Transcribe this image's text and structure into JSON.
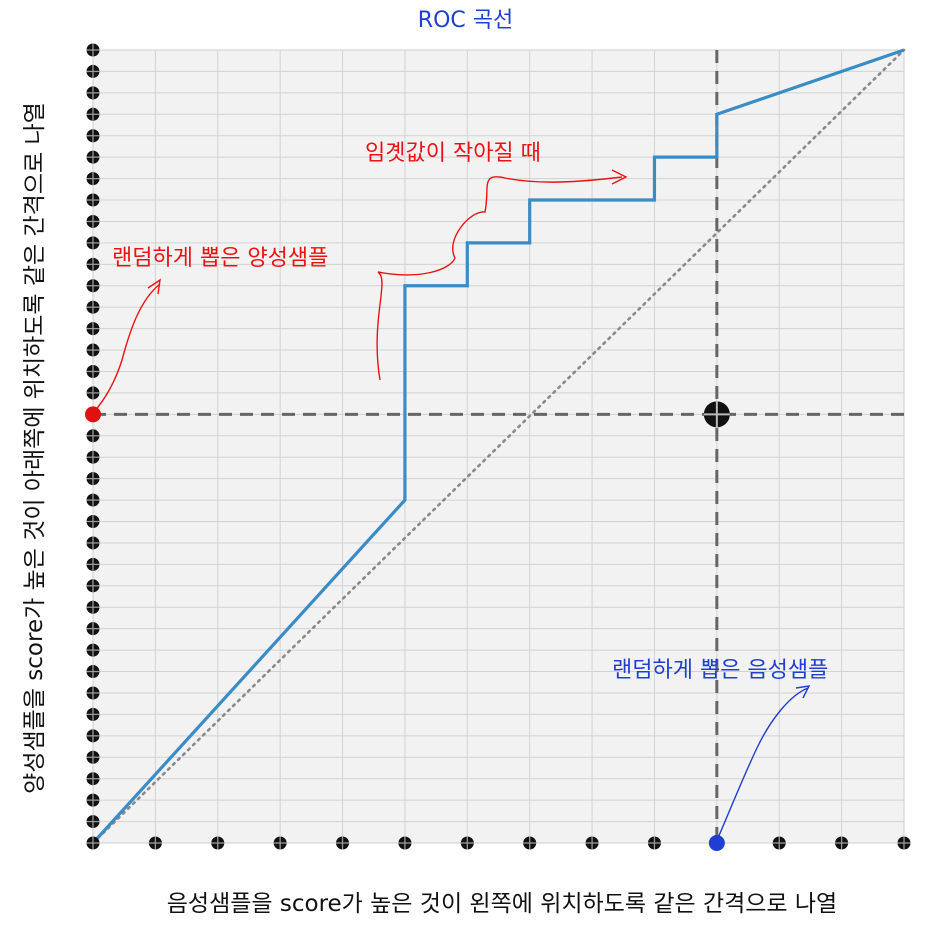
{
  "chart_data": {
    "type": "line",
    "title": "ROC 곡선",
    "xlabel": "음성샘플을 score가 높은 것이 왼쪽에 위치하도록 같은 간격으로 나열",
    "ylabel": "양성샘플을 score가 높은 것이 아래쪽에 위치하도록 같은 간격으로 나열",
    "xlim": [
      0,
      13
    ],
    "ylim": [
      0,
      37
    ],
    "grid": true,
    "x_ticks": [
      0,
      1,
      2,
      3,
      4,
      5,
      6,
      7,
      8,
      9,
      10,
      11,
      12,
      13
    ],
    "y_ticks": [
      0,
      1,
      2,
      3,
      4,
      5,
      6,
      7,
      8,
      9,
      10,
      11,
      12,
      13,
      14,
      15,
      16,
      17,
      18,
      19,
      20,
      21,
      22,
      23,
      24,
      25,
      26,
      27,
      28,
      29,
      30,
      31,
      32,
      33,
      34,
      35,
      36,
      37
    ],
    "series": [
      {
        "color": "#3a8cc4",
        "x": [
          0,
          5,
          5,
          6,
          6,
          7,
          7,
          9,
          9,
          10,
          10,
          13
        ],
        "y": [
          0,
          16,
          26,
          26,
          28,
          28,
          30,
          30,
          32,
          32,
          34,
          37
        ]
      }
    ],
    "diagonal": {
      "x": [
        0,
        13
      ],
      "y": [
        0,
        37
      ],
      "style": "dotted",
      "color": "#8a8a8a"
    },
    "crosshair": {
      "x": 10,
      "y": 20,
      "style": "dashed",
      "color": "#666666"
    },
    "highlighted_points": [
      {
        "x": 10,
        "y": 0,
        "color": "#1f3fd1"
      },
      {
        "x": 0,
        "y": 20,
        "color": "#e11111"
      }
    ],
    "annotations": [
      {
        "text": "임곗값이 작아질 때",
        "color": "#e11111"
      },
      {
        "text": "랜덤하게 뽑은 양성샘플",
        "color": "#e11111"
      },
      {
        "text": "랜덤하게 뽑은 음성샘플",
        "color": "#1f3fd1"
      }
    ]
  }
}
